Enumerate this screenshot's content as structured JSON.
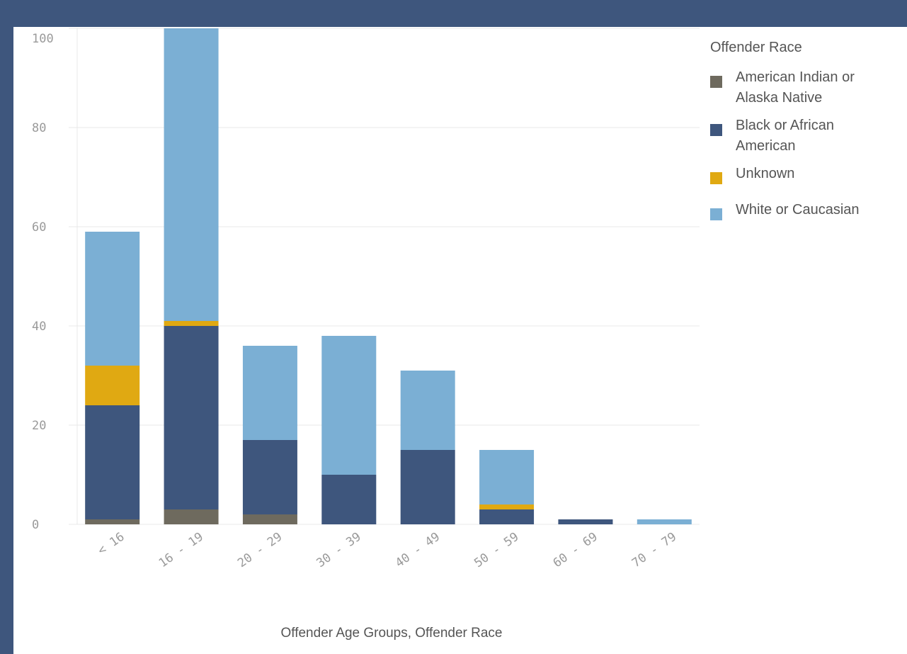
{
  "chart_data": {
    "type": "bar",
    "stacked": true,
    "categories": [
      "<16",
      "16-19",
      "20-29",
      "30-39",
      "40-49",
      "50-59",
      "60-69",
      "70-79"
    ],
    "series": [
      {
        "name": "American Indian or Alaska Native",
        "color": "#6e6a5e",
        "values": [
          1,
          3,
          2,
          0,
          0,
          0,
          0,
          0
        ]
      },
      {
        "name": "Black or African American",
        "color": "#3e567d",
        "values": [
          23,
          37,
          15,
          10,
          15,
          3,
          1,
          0
        ]
      },
      {
        "name": "Unknown",
        "color": "#e0a912",
        "values": [
          8,
          1,
          0,
          0,
          0,
          1,
          0,
          0
        ]
      },
      {
        "name": "White or Caucasian",
        "color": "#7bafd4",
        "values": [
          27,
          59,
          19,
          28,
          16,
          11,
          0,
          1
        ]
      }
    ],
    "ylim": [
      0,
      100
    ],
    "yticks": [
      "0",
      "20",
      "40",
      "60",
      "80",
      "100"
    ],
    "xtick_labels": [
      "<16",
      "16-19",
      "20-29",
      "30-39",
      "40-49",
      "50-59",
      "60-69",
      "70-79"
    ],
    "xlabel": "Offender Age Groups, Offender Race",
    "legend_title": "Offender Race",
    "legend_position": "right",
    "grid": true
  },
  "legend": {
    "title": "Offender Race",
    "items": [
      {
        "label": "American Indian or Alaska Native",
        "color": "#6e6a5e"
      },
      {
        "label": "Black or African American",
        "color": "#3e567d"
      },
      {
        "label": "Unknown",
        "color": "#e0a912"
      },
      {
        "label": "White or Caucasian",
        "color": "#7bafd4"
      }
    ]
  },
  "frame": {
    "accent": "#3e567d"
  }
}
